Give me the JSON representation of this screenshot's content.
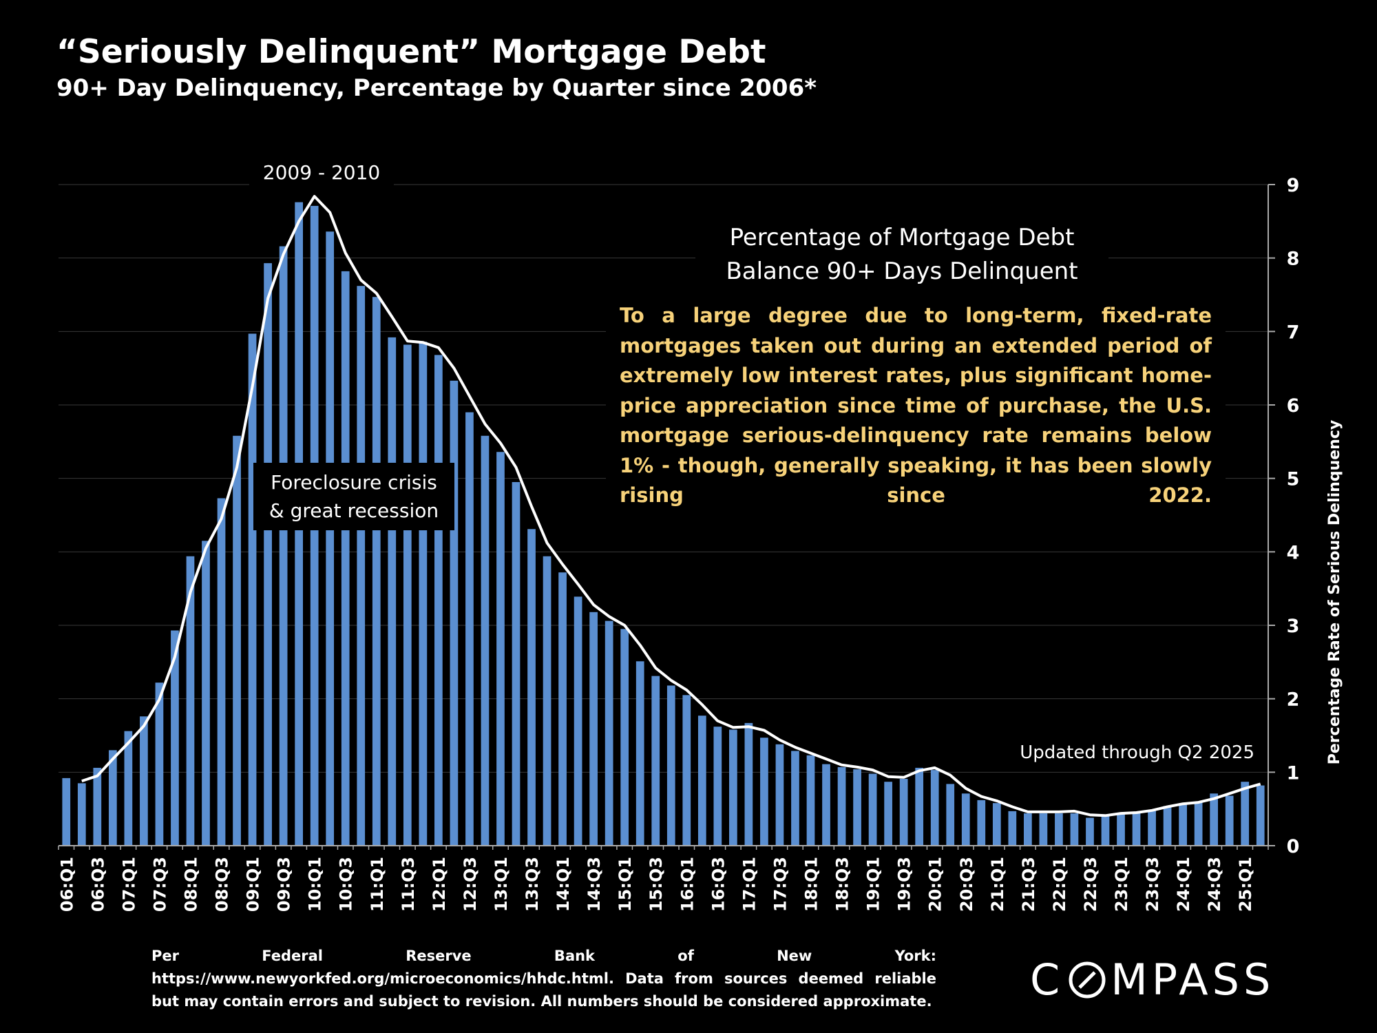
{
  "title": "“Seriously Delinquent” Mortgage Debt",
  "subtitle": "90+ Day Delinquency, Percentage by Quarter since 2006*",
  "annotations": {
    "peak": "2009 - 2010",
    "crisis_line1": "Foreclosure crisis",
    "crisis_line2": "& great recession",
    "box_heading_line1": "Percentage of Mortgage Debt",
    "box_heading_line2": "Balance 90+ Days Delinquent",
    "box_text": "To a large degree due to long-term, fixed-rate mortgages taken out during an extended period of extremely low interest rates, plus significant home-price appreciation since time of purchase, the U.S. mortgage serious-delinquency rate remains below 1% - though, generally speaking, it has been slowly rising since 2022.",
    "updated": "Updated through Q2 2025"
  },
  "footer": {
    "source_line1": "Per Federal Reserve Bank of New York: https://www.newyorkfed.org/microeconomics/hhdc.html.",
    "source_line2": "Data from sources deemed reliable but may contain errors and subject to revision. All numbers should be considered approximate.",
    "logo_left": "C",
    "logo_right": "MPASS"
  },
  "colors": {
    "bar": "#5b8fd1",
    "trend": "#ffffff",
    "grid": "#3a3a3a",
    "note": "#f7d27a"
  },
  "chart_data": {
    "type": "bar",
    "title": "Percentage of Mortgage Debt Balance 90+ Days Delinquent",
    "xlabel": "",
    "ylabel": "Percentage Rate of Serious Delinquency",
    "ylim": [
      0,
      9
    ],
    "yticks": [
      0,
      1,
      2,
      3,
      4,
      5,
      6,
      7,
      8,
      9
    ],
    "y_axis_side": "right",
    "grid": true,
    "categories": [
      "06:Q1",
      "06:Q2",
      "06:Q3",
      "06:Q4",
      "07:Q1",
      "07:Q2",
      "07:Q3",
      "07:Q4",
      "08:Q1",
      "08:Q2",
      "08:Q3",
      "08:Q4",
      "09:Q1",
      "09:Q2",
      "09:Q3",
      "09:Q4",
      "10:Q1",
      "10:Q2",
      "10:Q3",
      "10:Q4",
      "11:Q1",
      "11:Q2",
      "11:Q3",
      "11:Q4",
      "12:Q1",
      "12:Q2",
      "12:Q3",
      "12:Q4",
      "13:Q1",
      "13:Q2",
      "13:Q3",
      "13:Q4",
      "14:Q1",
      "14:Q2",
      "14:Q3",
      "14:Q4",
      "15:Q1",
      "15:Q2",
      "15:Q3",
      "15:Q4",
      "16:Q1",
      "16:Q2",
      "16:Q3",
      "16:Q4",
      "17:Q1",
      "17:Q2",
      "17:Q3",
      "17:Q4",
      "18:Q1",
      "18:Q2",
      "18:Q3",
      "18:Q4",
      "19:Q1",
      "19:Q2",
      "19:Q3",
      "19:Q4",
      "20:Q1",
      "20:Q2",
      "20:Q3",
      "20:Q4",
      "21:Q1",
      "21:Q2",
      "21:Q3",
      "21:Q4",
      "22:Q1",
      "22:Q2",
      "22:Q3",
      "22:Q4",
      "23:Q1",
      "23:Q2",
      "23:Q3",
      "23:Q4",
      "24:Q1",
      "24:Q2",
      "24:Q3",
      "24:Q4",
      "25:Q1",
      "25:Q2"
    ],
    "tick_labels": [
      "06:Q1",
      "06:Q3",
      "07:Q1",
      "07:Q3",
      "08:Q1",
      "08:Q3",
      "09:Q1",
      "09:Q3",
      "10:Q1",
      "10:Q3",
      "11:Q1",
      "11:Q3",
      "12:Q1",
      "12:Q3",
      "13:Q1",
      "13:Q3",
      "14:Q1",
      "14:Q3",
      "15:Q1",
      "15:Q3",
      "16:Q1",
      "16:Q3",
      "17:Q1",
      "17:Q3",
      "18:Q1",
      "18:Q3",
      "19:Q1",
      "19:Q3",
      "20:Q1",
      "20:Q3",
      "21:Q1",
      "21:Q3",
      "22:Q1",
      "22:Q3",
      "23:Q1",
      "23:Q3",
      "24:Q1",
      "24:Q3",
      "25:Q1"
    ],
    "series": [
      {
        "name": "Percentage 90+ days delinquent",
        "type": "bar",
        "values": [
          0.92,
          0.85,
          1.06,
          1.3,
          1.56,
          1.76,
          2.22,
          2.93,
          3.94,
          4.15,
          4.73,
          5.58,
          6.97,
          7.93,
          8.16,
          8.76,
          8.71,
          8.36,
          7.82,
          7.62,
          7.47,
          6.92,
          6.82,
          6.86,
          6.68,
          6.33,
          5.9,
          5.58,
          5.36,
          4.95,
          4.31,
          3.94,
          3.72,
          3.39,
          3.18,
          3.06,
          2.95,
          2.51,
          2.31,
          2.18,
          2.05,
          1.77,
          1.62,
          1.58,
          1.67,
          1.47,
          1.38,
          1.29,
          1.23,
          1.11,
          1.07,
          1.04,
          0.98,
          0.87,
          0.91,
          1.06,
          1.03,
          0.84,
          0.71,
          0.62,
          0.58,
          0.47,
          0.44,
          0.44,
          0.44,
          0.44,
          0.38,
          0.41,
          0.43,
          0.45,
          0.49,
          0.54,
          0.58,
          0.59,
          0.71,
          0.68,
          0.87,
          0.82
        ]
      },
      {
        "name": "Trend",
        "type": "line",
        "values": [
          null,
          0.88,
          0.95,
          1.18,
          1.4,
          1.63,
          1.99,
          2.57,
          3.45,
          4.05,
          4.45,
          5.15,
          6.25,
          7.45,
          8.05,
          8.5,
          8.84,
          8.62,
          8.07,
          7.7,
          7.52,
          7.2,
          6.87,
          6.85,
          6.78,
          6.5,
          6.12,
          5.74,
          5.48,
          5.15,
          4.62,
          4.12,
          3.83,
          3.56,
          3.28,
          3.12,
          3.0,
          2.73,
          2.42,
          2.25,
          2.12,
          1.92,
          1.7,
          1.61,
          1.62,
          1.57,
          1.44,
          1.34,
          1.26,
          1.18,
          1.1,
          1.07,
          1.03,
          0.94,
          0.93,
          1.02,
          1.06,
          0.96,
          0.78,
          0.67,
          0.61,
          0.53,
          0.46,
          0.46,
          0.46,
          0.47,
          0.42,
          0.41,
          0.44,
          0.45,
          0.48,
          0.53,
          0.57,
          0.59,
          0.64,
          0.71,
          0.78,
          0.84
        ]
      }
    ]
  }
}
